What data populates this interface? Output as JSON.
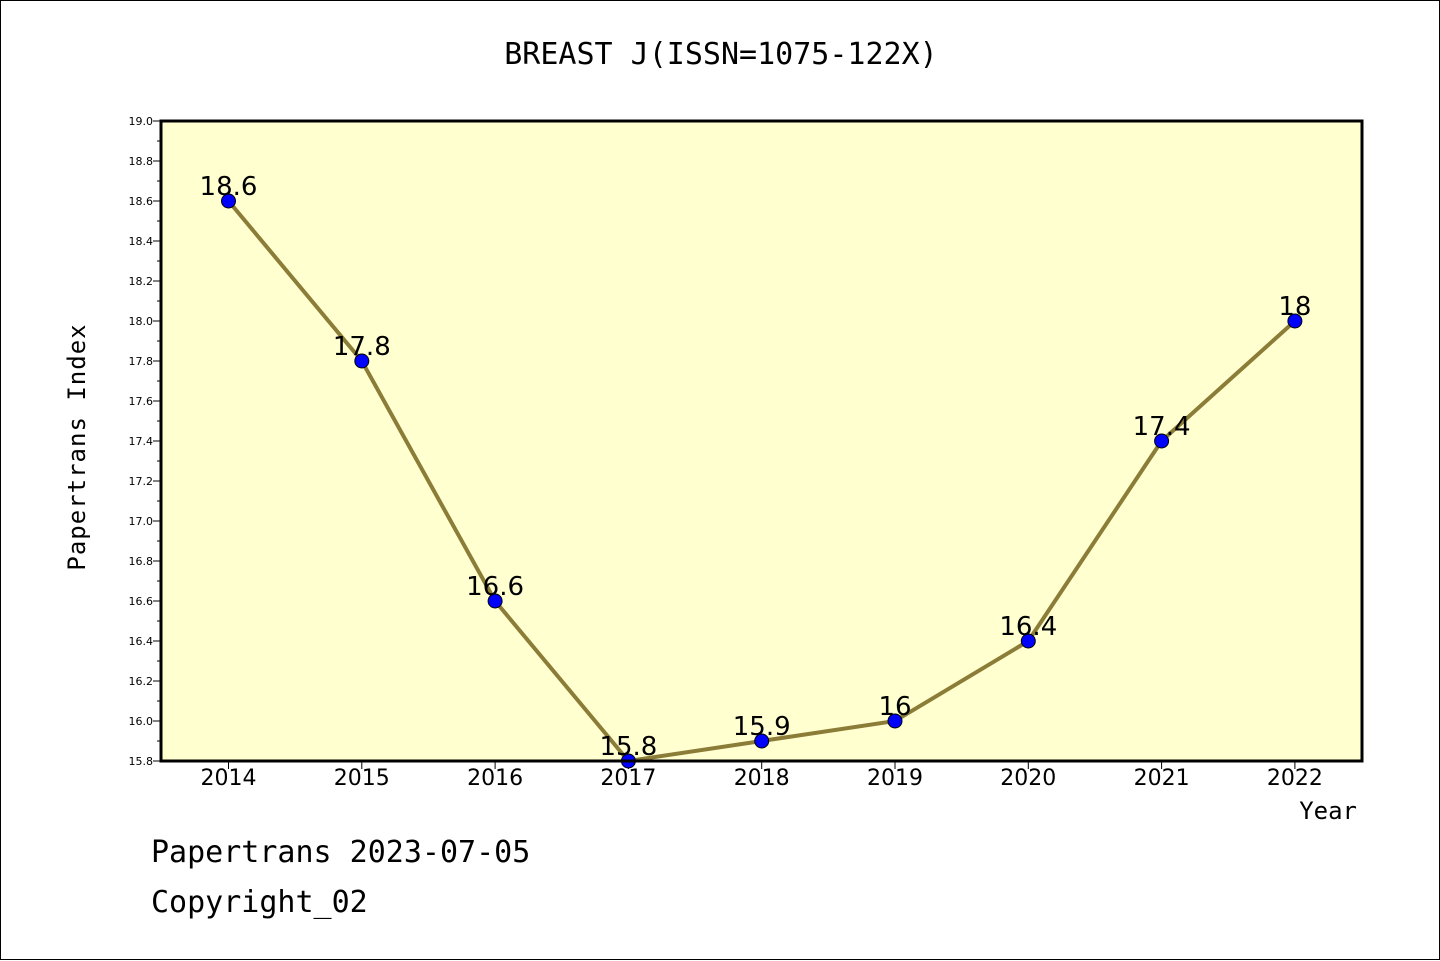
{
  "chart_data": {
    "type": "line",
    "title": "BREAST J(ISSN=1075-122X)",
    "xlabel": "Year",
    "ylabel": "Papertrans Index",
    "categories": [
      "2014",
      "2015",
      "2016",
      "2017",
      "2018",
      "2019",
      "2020",
      "2021",
      "2022"
    ],
    "series": [
      {
        "values": [
          18.6,
          17.8,
          16.6,
          15.8,
          15.9,
          16.0,
          16.4,
          17.4,
          18.0
        ]
      }
    ],
    "data_labels": [
      "18.6",
      "17.8",
      "16.6",
      "15.8",
      "15.9",
      "16",
      "16.4",
      "17.4",
      "18"
    ],
    "ylim": [
      15.8,
      19.0
    ],
    "yticks": [
      "15.8",
      "16.0",
      "16.2",
      "16.4",
      "16.6",
      "16.8",
      "17.0",
      "17.2",
      "17.4",
      "17.6",
      "17.8",
      "18.0",
      "18.2",
      "18.4",
      "18.6",
      "18.8",
      "19.0"
    ],
    "grid": false,
    "colors": {
      "plot_background": "#ffffd0",
      "line": "#8b7d38",
      "marker": "#0000ff"
    }
  },
  "footer": {
    "line1": "Papertrans 2023-07-05",
    "line2": "Copyright_02"
  }
}
